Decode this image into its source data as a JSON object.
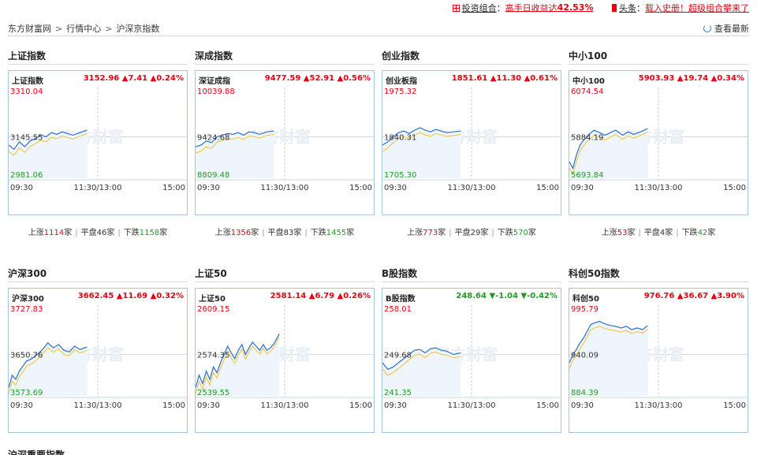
{
  "header": {
    "promo_label": "投资组合",
    "promo_sep": "：",
    "promo_text": "高手日收益达",
    "promo_value": "42.53%",
    "news_label": "头条",
    "news_sep": "：",
    "news_text": "载入史册！超级组合攀来了"
  },
  "breadcrumb": [
    "东方财富网",
    "行情中心",
    "沪深京指数"
  ],
  "breadcrumb_sep": ">",
  "refresh_label": "查看最新",
  "time_labels": [
    "09:30",
    "11:30/13:00",
    "15:00"
  ],
  "watermark": "东方财富",
  "stats_labels": {
    "up": "上涨",
    "flat": "平盘",
    "down": "下跌",
    "unit": "家",
    "bar": "|"
  },
  "bottom_section_title": "沪深重要指数",
  "cards": [
    {
      "title": "上证指数",
      "name": "上证指数",
      "price": "3152.96",
      "change": "▲7.41",
      "pct": "▲0.24%",
      "dir": "up",
      "high": "3310.04",
      "mid": "3145.55",
      "low": "2981.06",
      "stats": {
        "up": "1114",
        "flat": "46",
        "down": "1158"
      }
    },
    {
      "title": "深成指数",
      "name": "深证成指",
      "price": "9477.59",
      "change": "▲52.91",
      "pct": "▲0.56%",
      "dir": "up",
      "high": "10039.88",
      "mid": "9424.68",
      "low": "8809.48",
      "stats": {
        "up": "1356",
        "flat": "83",
        "down": "1455"
      }
    },
    {
      "title": "创业指数",
      "name": "创业板指",
      "price": "1851.61",
      "change": "▲11.30",
      "pct": "▲0.61%",
      "dir": "up",
      "high": "1975.32",
      "mid": "1840.31",
      "low": "1705.30",
      "stats": {
        "up": "773",
        "flat": "29",
        "down": "570"
      }
    },
    {
      "title": "中小100",
      "name": "中小100",
      "price": "5903.93",
      "change": "▲19.74",
      "pct": "▲0.34%",
      "dir": "up",
      "high": "6074.54",
      "mid": "5884.19",
      "low": "5693.84",
      "stats": {
        "up": "53",
        "flat": "4",
        "down": "42"
      }
    },
    {
      "title": "沪深300",
      "name": "沪深300",
      "price": "3662.45",
      "change": "▲11.69",
      "pct": "▲0.32%",
      "dir": "up",
      "high": "3727.83",
      "mid": "3650.76",
      "low": "3573.69"
    },
    {
      "title": "上证50",
      "name": "上证50",
      "price": "2581.14",
      "change": "▲6.79",
      "pct": "▲0.26%",
      "dir": "up",
      "high": "2609.15",
      "mid": "2574.35",
      "low": "2539.55"
    },
    {
      "title": "B股指数",
      "name": "B股指数",
      "price": "248.64",
      "change": "▼-1.04",
      "pct": "▼-0.42%",
      "dir": "down",
      "high": "258.01",
      "mid": "249.68",
      "low": "241.35"
    },
    {
      "title": "科创50指数",
      "name": "科创50",
      "price": "976.76",
      "change": "▲36.67",
      "pct": "▲3.90%",
      "dir": "up",
      "high": "995.79",
      "mid": "940.09",
      "low": "884.39"
    }
  ],
  "colors": {
    "up": "#e60012",
    "down": "#1e9b24",
    "line": "#2a6fc9",
    "avg": "#f2c233",
    "fill": "#eef5fc",
    "frame": "#aac4dd"
  }
}
